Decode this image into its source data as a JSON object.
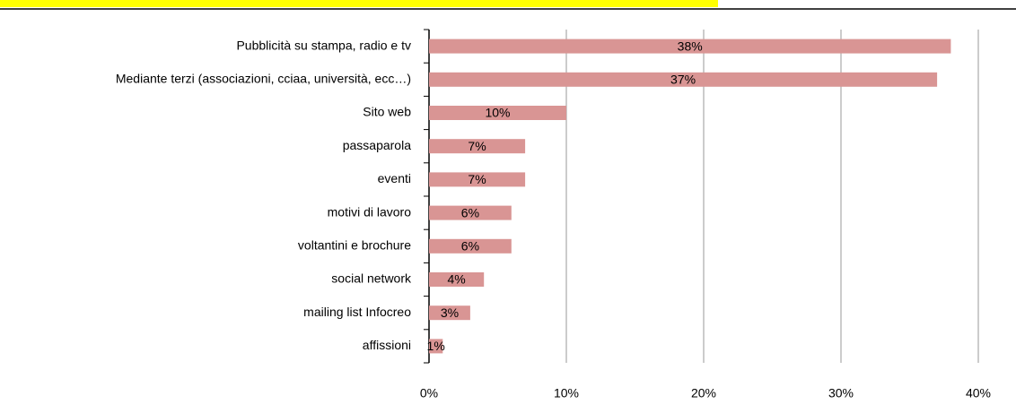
{
  "chart_data": {
    "type": "bar",
    "orientation": "horizontal",
    "categories": [
      "Pubblicità su stampa, radio e tv",
      "Mediante terzi (associazioni, cciaa, università, ecc…)",
      "Sito web",
      "passaparola",
      "eventi",
      "motivi di lavoro",
      "voltantini e brochure",
      "social network",
      "mailing list Infocreo",
      "affissioni"
    ],
    "values": [
      38,
      37,
      10,
      7,
      7,
      6,
      6,
      4,
      3,
      1
    ],
    "value_labels": [
      "38%",
      "37%",
      "10%",
      "7%",
      "7%",
      "6%",
      "6%",
      "4%",
      "3%",
      "1%"
    ],
    "color": "#d99594",
    "xlim": [
      0,
      40
    ],
    "xticks": [
      {
        "value": 0,
        "label": "0%"
      },
      {
        "value": 10,
        "label": "10%"
      },
      {
        "value": 20,
        "label": "20%"
      },
      {
        "value": 30,
        "label": "30%"
      },
      {
        "value": 40,
        "label": "40%"
      }
    ],
    "grid": true
  }
}
